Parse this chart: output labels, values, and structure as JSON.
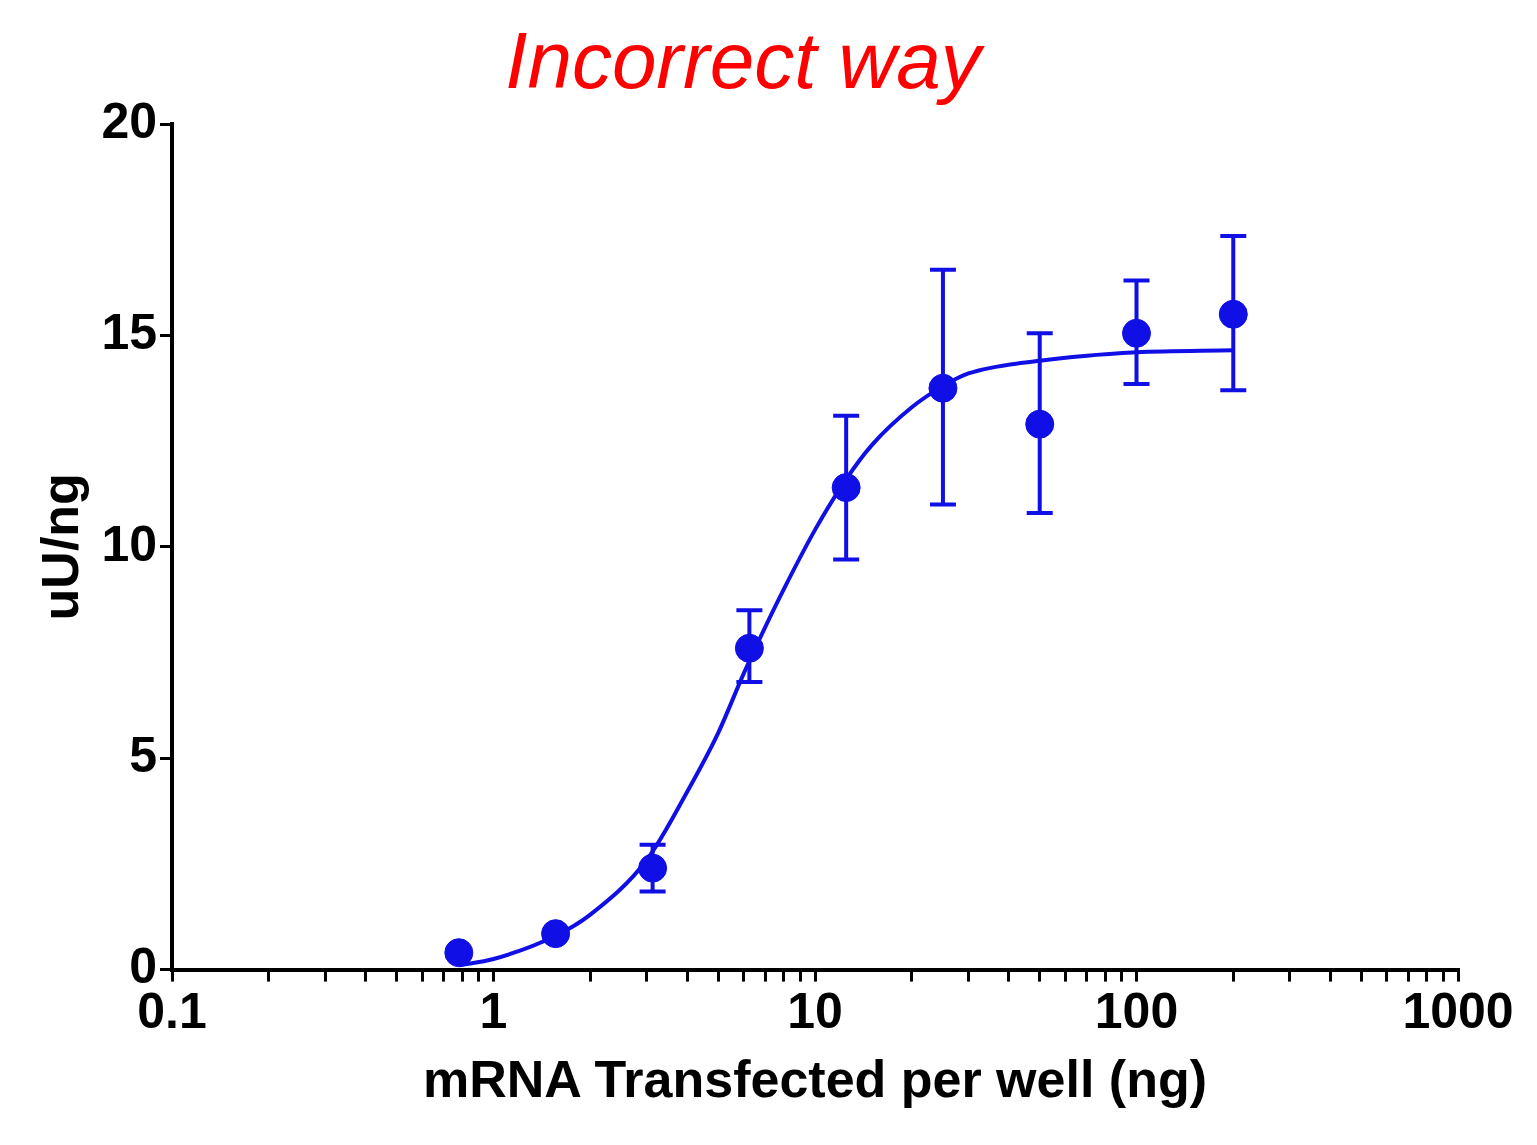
{
  "chart_data": {
    "type": "scatter",
    "title": "Incorrect way",
    "xlabel": "mRNA Transfected per well (ng)",
    "ylabel": "uU/ng",
    "log": "x",
    "marker": "circle",
    "xlim": [
      0.1,
      1000
    ],
    "xticks": [
      0.1,
      {
        "value": 0.2,
        "label": null
      },
      {
        "value": 0.3,
        "label": null
      },
      {
        "value": 0.4,
        "label": null
      },
      {
        "value": 0.5,
        "label": null
      },
      {
        "value": 0.6,
        "label": null
      },
      {
        "value": 0.7,
        "label": null
      },
      {
        "value": 0.8,
        "label": null
      },
      {
        "value": 0.9,
        "label": null
      },
      1,
      {
        "value": 2,
        "label": null
      },
      {
        "value": 3,
        "label": null
      },
      {
        "value": 4,
        "label": null
      },
      {
        "value": 5,
        "label": null
      },
      {
        "value": 6,
        "label": null
      },
      {
        "value": 7,
        "label": null
      },
      {
        "value": 8,
        "label": null
      },
      {
        "value": 9,
        "label": null
      },
      10,
      {
        "value": 20,
        "label": null
      },
      {
        "value": 30,
        "label": null
      },
      {
        "value": 40,
        "label": null
      },
      {
        "value": 50,
        "label": null
      },
      {
        "value": 60,
        "label": null
      },
      {
        "value": 70,
        "label": null
      },
      {
        "value": 80,
        "label": null
      },
      {
        "value": 90,
        "label": null
      },
      100,
      {
        "value": 200,
        "label": null
      },
      {
        "value": 300,
        "label": null
      },
      {
        "value": 400,
        "label": null
      },
      {
        "value": 500,
        "label": null
      },
      {
        "value": 600,
        "label": null
      },
      {
        "value": 700,
        "label": null
      },
      {
        "value": 800,
        "label": null
      },
      {
        "value": 900,
        "label": null
      },
      1000
    ],
    "ylim": [
      0,
      20
    ],
    "yticks": [
      0,
      5,
      10,
      15,
      20
    ],
    "series": [
      {
        "color": "#0f0fe6",
        "x": [
          0.78,
          1.56,
          3.125,
          6.25,
          12.5,
          25,
          50,
          100,
          200
        ],
        "values": [
          0.4,
          0.85,
          2.4,
          7.6,
          11.4,
          13.75,
          12.9,
          15.05,
          15.5
        ],
        "errors": [
          null,
          null,
          [
            1.85,
            2.95
          ],
          [
            6.8,
            8.5
          ],
          [
            9.7,
            13.1
          ],
          [
            11.0,
            16.55
          ],
          [
            10.8,
            15.05
          ],
          [
            13.85,
            16.3
          ],
          [
            13.7,
            17.35
          ]
        ]
      },
      {
        "type": "line",
        "color": "#0f0fe6",
        "marker": "none",
        "line_style": "solid",
        "x": [
          0.78,
          1,
          1.56,
          2,
          3,
          4,
          5,
          6,
          7,
          8,
          10,
          12.5,
          15,
          20,
          25,
          30,
          50,
          100,
          200
        ],
        "values": [
          0.1,
          0.25,
          0.8,
          1.3,
          2.6,
          4.2,
          5.6,
          7.0,
          8.1,
          9.0,
          10.4,
          11.6,
          12.4,
          13.3,
          13.8,
          14.1,
          14.4,
          14.6,
          14.65
        ]
      }
    ]
  }
}
